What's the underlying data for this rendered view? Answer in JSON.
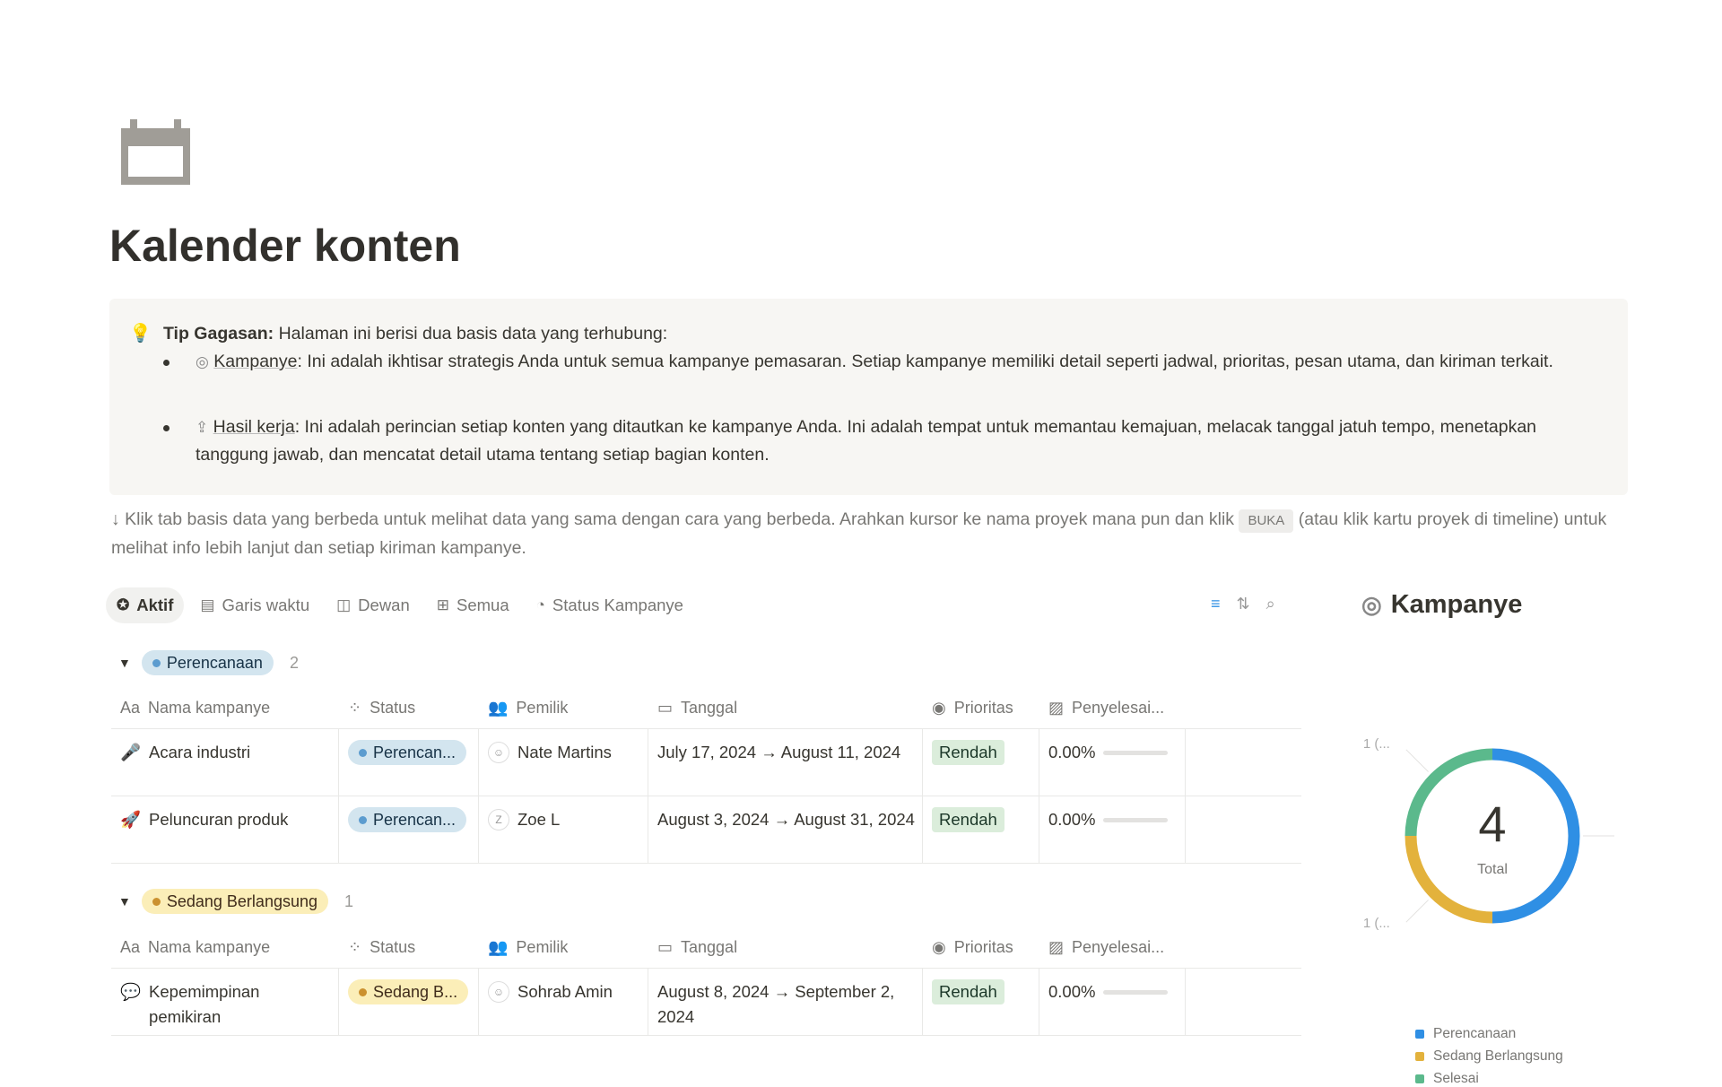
{
  "page": {
    "title": "Kalender konten",
    "icon": "calendar-icon"
  },
  "callout": {
    "icon": "lightbulb-icon",
    "lead_bold": "Tip Gagasan:",
    "lead_text": " Halaman ini berisi dua basis data yang terhubung:",
    "items": [
      {
        "icon": "target-icon",
        "link": "Kampanye",
        "text": ": Ini adalah ikhtisar strategis Anda untuk semua kampanye pemasaran. Setiap kampanye memiliki detail seperti jadwal, prioritas, pesan utama, dan kiriman terkait."
      },
      {
        "icon": "deliverable-icon",
        "link": "Hasil kerja",
        "text": ": Ini adalah perincian setiap konten yang ditautkan ke kampanye Anda. Ini adalah tempat untuk memantau kemajuan, melacak tanggal jatuh tempo, menetapkan tanggung jawab, dan mencatat detail utama tentang setiap bagian konten."
      }
    ]
  },
  "hint": {
    "before": "↓ Klik tab basis data yang berbeda untuk melihat data yang sama dengan cara yang berbeda. Arahkan kursor ke nama proyek mana pun dan klik ",
    "kbd": "BUKA",
    "after": " (atau klik kartu proyek di timeline) untuk melihat info lebih lanjut dan setiap kiriman kampanye."
  },
  "tabs": [
    {
      "label": "Aktif",
      "icon": "star-icon",
      "active": true
    },
    {
      "label": "Garis waktu",
      "icon": "timeline-icon"
    },
    {
      "label": "Dewan",
      "icon": "board-icon"
    },
    {
      "label": "Semua",
      "icon": "table-icon"
    },
    {
      "label": "Status Kampanye",
      "icon": "chart-icon"
    }
  ],
  "toolbar": {
    "filter": "filter-icon",
    "sort": "sort-icon",
    "search": "search-icon"
  },
  "columns": [
    "Nama kampanye",
    "Status",
    "Pemilik",
    "Tanggal",
    "Prioritas",
    "Penyelesai..."
  ],
  "groups": [
    {
      "label": "Perencanaan",
      "count": "2",
      "rows": [
        {
          "name": "Acara industri",
          "icon": "🎤",
          "status": "Perencan...",
          "owner": "Nate Martins",
          "date": "July 17, 2024 → August 11, 2024",
          "priority": "Rendah",
          "completion": "0.00%",
          "progress": 0
        },
        {
          "name": "Peluncuran produk",
          "icon": "🚀",
          "status": "Perencan...",
          "owner": "Zoe L",
          "owner_initial": "Z",
          "date": "August 3, 2024 → August 31, 2024",
          "priority": "Rendah",
          "completion": "0.00%",
          "progress": 0
        }
      ]
    },
    {
      "label": "Sedang Berlangsung",
      "count": "1",
      "rows": [
        {
          "name": "Kepemimpinan pemikiran",
          "icon": "💬",
          "status": "Sedang B...",
          "owner": "Sohrab Amin",
          "date": "August 8, 2024 → September 2, 2024",
          "priority": "Rendah",
          "completion": "0.00%",
          "progress": 0
        }
      ]
    }
  ],
  "side": {
    "title": "Kampanye"
  },
  "chart_data": {
    "type": "pie",
    "variant": "donut",
    "center_value": "4",
    "center_label": "Total",
    "categories": [
      "Perencanaan",
      "Sedang Berlangsung",
      "Selesai"
    ],
    "values": [
      2,
      1,
      1
    ],
    "colors": [
      "#2f8fe4",
      "#e3b23c",
      "#5bb98c"
    ],
    "data_labels": [
      "",
      "1 (...",
      "1 (..."
    ],
    "legend": "bottom"
  }
}
